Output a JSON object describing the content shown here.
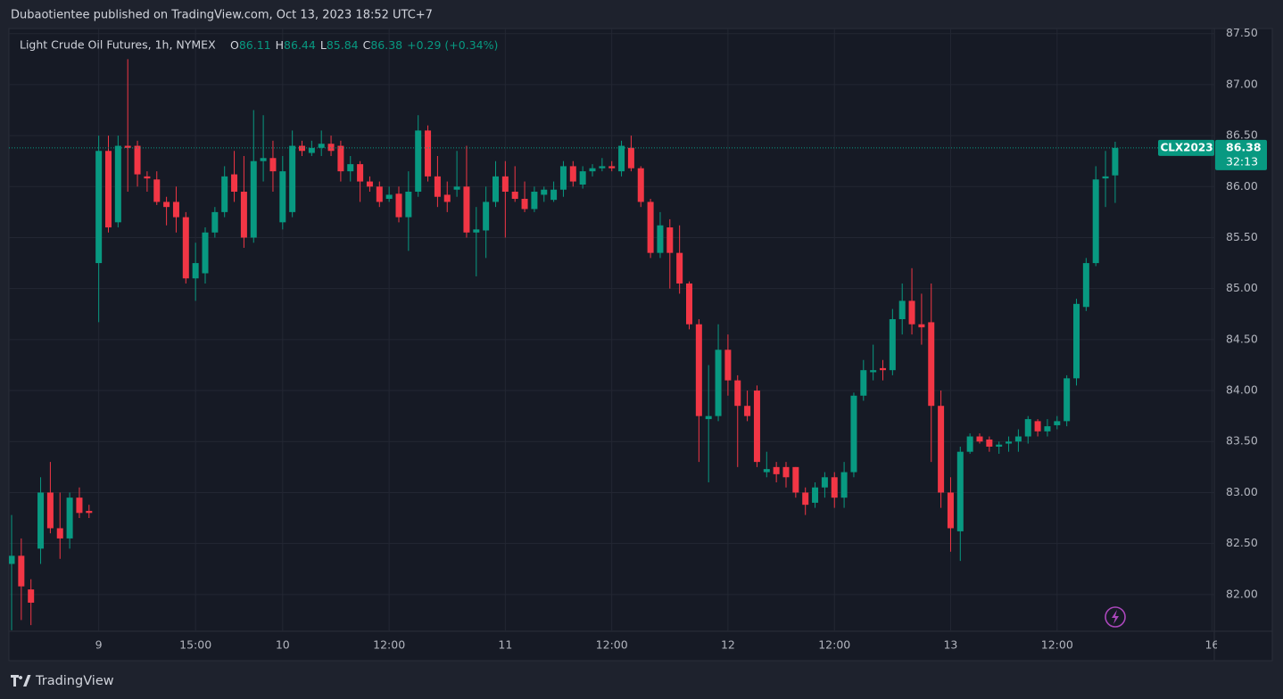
{
  "header": "Dubaotientee published on TradingView.com, Oct 13, 2023 18:52 UTC+7",
  "footer": "TradingView",
  "chart_data": {
    "type": "candlestick",
    "title": "Light Crude Oil Futures, 1h, NYMEX",
    "ohlc_labels": [
      "O",
      "H",
      "L",
      "C"
    ],
    "change_label": "+0.29 (+0.34%)",
    "symbol": "CLX2023",
    "countdown": "32:13",
    "up_color": "#089981",
    "down_color": "#f23645",
    "grid": true,
    "categories": [
      null,
      null,
      null,
      null,
      null,
      null,
      null,
      null,
      null,
      "9",
      null,
      null,
      null,
      null,
      null,
      null,
      null,
      null,
      null,
      "15:00",
      null,
      null,
      null,
      null,
      null,
      null,
      null,
      null,
      "10",
      null,
      null,
      null,
      null,
      null,
      null,
      null,
      null,
      null,
      null,
      "12:00",
      null,
      null,
      null,
      null,
      null,
      null,
      null,
      null,
      null,
      null,
      null,
      "11",
      null,
      null,
      null,
      null,
      null,
      null,
      null,
      null,
      null,
      null,
      "12:00",
      null,
      null,
      null,
      null,
      null,
      null,
      null,
      null,
      null,
      null,
      null,
      "12",
      null,
      null,
      null,
      null,
      null,
      null,
      null,
      null,
      null,
      null,
      "12:00",
      null,
      null,
      null,
      null,
      null,
      null,
      null,
      null,
      null,
      null,
      null,
      "13",
      null,
      null,
      null,
      null,
      null,
      null,
      null,
      null,
      null,
      null,
      "12:00",
      null,
      null,
      null,
      null,
      null,
      null,
      null,
      null,
      null,
      null,
      null,
      null,
      null,
      null,
      null,
      "16"
    ],
    "open": [
      82.3,
      82.38,
      82.05,
      82.45,
      83.0,
      82.65,
      82.55,
      82.95,
      82.82,
      85.25,
      86.35,
      85.65,
      86.4,
      86.4,
      86.1,
      86.07,
      85.85,
      85.85,
      85.7,
      85.1,
      85.15,
      85.55,
      85.75,
      86.12,
      85.95,
      85.5,
      86.25,
      86.28,
      85.65,
      85.75,
      86.4,
      86.33,
      86.38,
      86.42,
      86.4,
      86.15,
      86.22,
      86.05,
      86.0,
      85.88,
      85.93,
      85.7,
      85.95,
      86.55,
      86.1,
      85.92,
      85.97,
      86.0,
      85.55,
      85.57,
      85.85,
      86.1,
      85.95,
      85.88,
      85.78,
      85.92,
      85.87,
      85.97,
      86.2,
      86.02,
      86.15,
      86.18,
      86.2,
      86.15,
      86.38,
      86.18,
      85.85,
      85.35,
      85.6,
      85.35,
      85.05,
      84.65,
      83.72,
      83.75,
      84.4,
      84.1,
      83.85,
      84.0,
      83.2,
      83.25,
      83.25,
      83.25,
      83.0,
      82.9,
      83.05,
      83.15,
      82.95,
      83.2,
      83.95,
      84.18,
      84.22,
      84.2,
      84.7,
      84.88,
      84.65,
      84.67,
      83.85,
      83.0,
      82.62,
      83.4,
      83.55,
      83.52,
      83.45,
      83.48,
      83.5,
      83.55,
      83.7,
      83.6,
      83.66,
      83.7,
      84.12,
      84.82,
      85.25,
      86.08,
      86.11,
      null,
      null,
      null,
      null,
      null,
      null,
      null,
      null,
      null,
      null
    ],
    "high": [
      82.78,
      82.55,
      82.15,
      83.15,
      83.3,
      83.0,
      83.0,
      83.05,
      82.88,
      86.5,
      86.5,
      86.5,
      87.25,
      86.45,
      86.15,
      86.15,
      85.9,
      86.0,
      85.75,
      85.45,
      85.6,
      85.8,
      86.2,
      86.35,
      86.3,
      86.75,
      86.7,
      86.45,
      86.3,
      86.55,
      86.45,
      86.45,
      86.55,
      86.5,
      86.45,
      86.3,
      86.25,
      86.1,
      86.05,
      86.0,
      86.0,
      86.15,
      86.7,
      86.6,
      86.3,
      86.05,
      86.35,
      86.4,
      85.8,
      86.0,
      86.25,
      86.25,
      86.2,
      86.05,
      86.0,
      86.0,
      86.05,
      86.25,
      86.25,
      86.2,
      86.22,
      86.28,
      86.25,
      86.45,
      86.5,
      86.2,
      85.88,
      85.75,
      85.68,
      85.62,
      85.07,
      84.7,
      84.25,
      84.65,
      84.55,
      84.15,
      84.0,
      84.05,
      83.4,
      83.3,
      83.3,
      83.25,
      83.05,
      83.1,
      83.2,
      83.2,
      83.3,
      83.98,
      84.3,
      84.45,
      84.3,
      84.8,
      85.05,
      85.2,
      84.95,
      85.05,
      84.0,
      83.15,
      83.45,
      83.58,
      83.58,
      83.55,
      83.5,
      83.55,
      83.62,
      83.75,
      83.72,
      83.72,
      83.75,
      84.15,
      84.9,
      85.3,
      86.2,
      86.35,
      86.44,
      null,
      null,
      null,
      null,
      null,
      null,
      null,
      null,
      null,
      null
    ],
    "low": [
      81.65,
      81.75,
      81.7,
      82.3,
      82.6,
      82.35,
      82.45,
      82.75,
      82.75,
      84.67,
      85.55,
      85.6,
      85.95,
      86.0,
      85.95,
      85.82,
      85.62,
      85.55,
      85.05,
      84.88,
      85.05,
      85.5,
      85.7,
      85.85,
      85.4,
      85.45,
      86.05,
      85.95,
      85.58,
      85.7,
      86.3,
      86.3,
      86.3,
      86.3,
      86.05,
      86.05,
      85.85,
      85.95,
      85.8,
      85.85,
      85.65,
      85.37,
      85.9,
      86.05,
      85.8,
      85.75,
      85.9,
      85.5,
      85.12,
      85.3,
      85.8,
      85.5,
      85.85,
      85.75,
      85.75,
      85.85,
      85.85,
      85.9,
      86.0,
      85.98,
      86.1,
      86.15,
      86.15,
      86.1,
      86.15,
      85.8,
      85.3,
      85.3,
      85.0,
      84.95,
      84.6,
      83.3,
      83.1,
      83.7,
      83.95,
      83.25,
      83.7,
      83.25,
      83.15,
      83.1,
      83.05,
      82.95,
      82.78,
      82.85,
      82.95,
      82.85,
      82.85,
      83.15,
      83.9,
      84.1,
      84.1,
      84.15,
      84.55,
      84.55,
      84.45,
      83.3,
      82.85,
      82.42,
      82.33,
      83.38,
      83.48,
      83.4,
      83.38,
      83.4,
      83.4,
      83.48,
      83.55,
      83.55,
      83.62,
      83.65,
      84.05,
      84.78,
      85.22,
      85.8,
      85.84,
      null,
      null,
      null,
      null,
      null,
      null,
      null,
      null,
      null,
      null
    ],
    "close": [
      82.38,
      82.08,
      81.92,
      83.0,
      82.65,
      82.55,
      82.95,
      82.8,
      82.8,
      86.35,
      85.6,
      86.4,
      86.38,
      86.12,
      86.08,
      85.85,
      85.8,
      85.7,
      85.1,
      85.25,
      85.55,
      85.75,
      86.1,
      85.95,
      85.5,
      86.25,
      86.28,
      86.15,
      86.15,
      86.4,
      86.35,
      86.38,
      86.42,
      86.35,
      86.15,
      86.22,
      86.05,
      86.0,
      85.85,
      85.92,
      85.7,
      85.95,
      86.55,
      86.1,
      85.9,
      85.85,
      86.0,
      85.55,
      85.58,
      85.85,
      86.1,
      85.95,
      85.88,
      85.78,
      85.95,
      85.97,
      85.97,
      86.2,
      86.05,
      86.15,
      86.18,
      86.2,
      86.18,
      86.4,
      86.18,
      85.85,
      85.35,
      85.62,
      85.35,
      85.05,
      84.65,
      83.75,
      83.75,
      84.4,
      84.1,
      83.85,
      83.75,
      83.3,
      83.23,
      83.18,
      83.15,
      83.0,
      82.88,
      83.05,
      83.15,
      82.95,
      83.2,
      83.95,
      84.2,
      84.2,
      84.2,
      84.7,
      84.88,
      84.65,
      84.62,
      83.85,
      83.0,
      82.65,
      83.4,
      83.55,
      83.5,
      83.45,
      83.47,
      83.5,
      83.55,
      83.72,
      83.6,
      83.65,
      83.7,
      84.12,
      84.85,
      85.25,
      86.07,
      86.1,
      86.38,
      null,
      null,
      null,
      null,
      null,
      null,
      null,
      null,
      null,
      null
    ],
    "ylim": [
      81.64,
      87.55
    ],
    "yticks": [
      {
        "value": 82,
        "label": "82.00"
      },
      {
        "value": 82.5,
        "label": "82.50"
      },
      {
        "value": 83,
        "label": "83.00"
      },
      {
        "value": 83.5,
        "label": "83.50"
      },
      {
        "value": 84,
        "label": "84.00"
      },
      {
        "value": 84.5,
        "label": "84.50"
      },
      {
        "value": 85,
        "label": "85.00"
      },
      {
        "value": 85.5,
        "label": "85.50"
      },
      {
        "value": 86,
        "label": "86.00"
      },
      {
        "value": 86.5,
        "label": "86.50"
      },
      {
        "value": 87,
        "label": "87.00"
      },
      {
        "value": 87.5,
        "label": "87.50"
      }
    ]
  }
}
